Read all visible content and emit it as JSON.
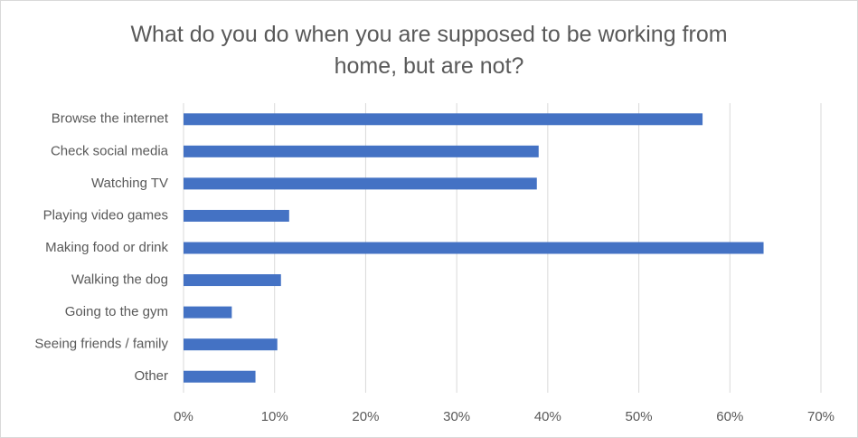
{
  "chart_data": {
    "type": "barh",
    "title": "What do you do when you are supposed to be working from home, but are not?",
    "categories": [
      "Browse the internet",
      "Check social media",
      "Watching TV",
      "Playing video games",
      "Making food or drink",
      "Walking the dog",
      "Going to the gym",
      "Seeing friends / family",
      "Other"
    ],
    "values": [
      57,
      39,
      38.8,
      11.6,
      63.7,
      10.7,
      5.3,
      10.3,
      7.9
    ],
    "color": "#4472c4",
    "xlim": [
      0,
      70
    ],
    "xticks": [
      {
        "value": 0,
        "label": "0%"
      },
      {
        "value": 10,
        "label": "10%"
      },
      {
        "value": 20,
        "label": "20%"
      },
      {
        "value": 30,
        "label": "30%"
      },
      {
        "value": 40,
        "label": "40%"
      },
      {
        "value": 50,
        "label": "50%"
      },
      {
        "value": 60,
        "label": "60%"
      },
      {
        "value": 70,
        "label": "70%"
      }
    ],
    "grid": true
  }
}
